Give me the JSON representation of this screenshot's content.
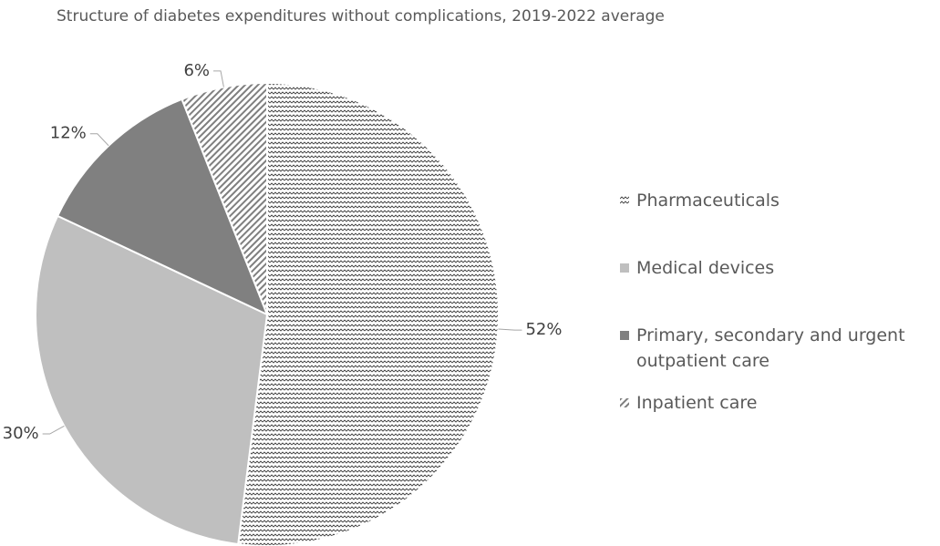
{
  "chart_data": {
    "type": "pie",
    "title": "Structure of diabetes expenditures without complications, 2019-2022 average",
    "categories": [
      "Pharmaceuticals",
      "Medical devices",
      "Primary, secondary and urgent outpatient care",
      "Inpatient care"
    ],
    "values": [
      52,
      30,
      12,
      6
    ],
    "value_labels": [
      "52%",
      "30%",
      "12%",
      "6%"
    ],
    "colors": [
      "#404040",
      "#bfbfbf",
      "#808080",
      "#7f7f7f"
    ],
    "patterns": [
      "wave",
      "solid",
      "solid",
      "diagonal"
    ],
    "legend": "right"
  }
}
